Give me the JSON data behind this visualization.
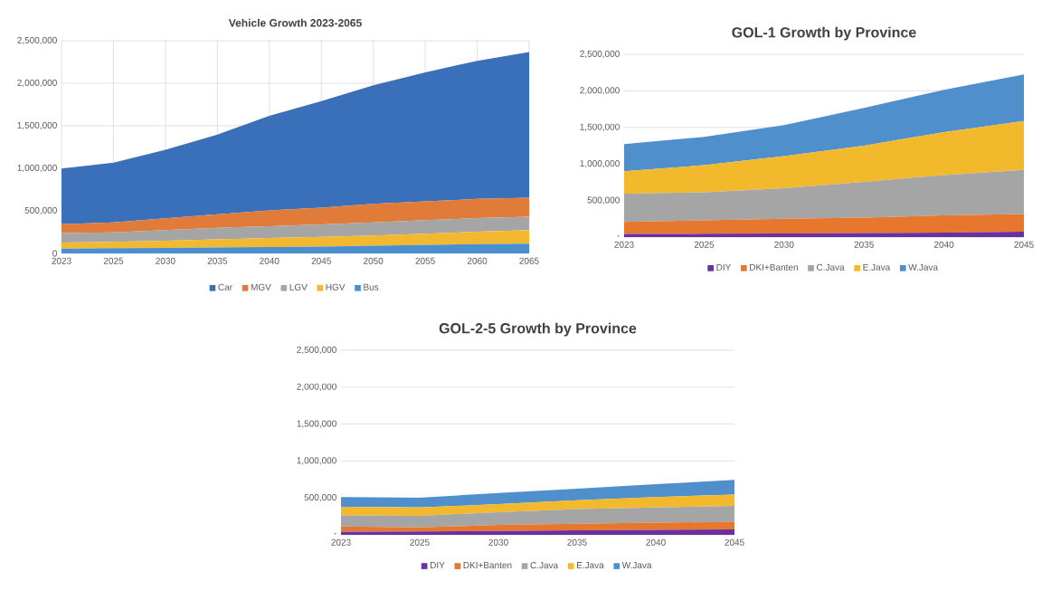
{
  "chart_data": [
    {
      "type": "area",
      "title": "Vehicle Growth 2023-2065",
      "stacked": true,
      "grid": true,
      "legend": "bottom",
      "categories": [
        "2023",
        "2025",
        "2030",
        "2035",
        "2040",
        "2045",
        "2050",
        "2055",
        "2060",
        "2065"
      ],
      "ylim": [
        0,
        2500000
      ],
      "yticks": [
        {
          "value": 0,
          "label": "0"
        },
        {
          "value": 500000,
          "label": "500,000"
        },
        {
          "value": 1000000,
          "label": "1,000,000"
        },
        {
          "value": 1500000,
          "label": "1,500,000"
        },
        {
          "value": 2000000,
          "label": "2,000,000"
        },
        {
          "value": 2500000,
          "label": "2,500,000"
        }
      ],
      "series": [
        {
          "name": "Bus",
          "color": "#4a90d0",
          "values": [
            55000,
            60000,
            65000,
            70000,
            75000,
            80000,
            90000,
            100000,
            110000,
            115000
          ]
        },
        {
          "name": "HGV",
          "color": "#f2b930",
          "values": [
            73000,
            75000,
            85000,
            95000,
            105000,
            115000,
            120000,
            130000,
            145000,
            158000
          ]
        },
        {
          "name": "LGV",
          "color": "#a5a5a5",
          "values": [
            112000,
            113000,
            125000,
            135000,
            140000,
            145000,
            155000,
            160000,
            160000,
            157000
          ]
        },
        {
          "name": "MGV",
          "color": "#e07b39",
          "values": [
            103000,
            116000,
            138000,
            159000,
            184000,
            197000,
            218000,
            222000,
            225000,
            223000
          ]
        },
        {
          "name": "Car",
          "color": "#3a6fba",
          "values": [
            653000,
            702000,
            806000,
            938000,
            1112000,
            1252000,
            1392000,
            1516000,
            1624000,
            1715000
          ]
        }
      ]
    },
    {
      "type": "area",
      "title": "GOL-1 Growth by Province",
      "stacked": true,
      "grid": "y",
      "legend": "bottom",
      "categories": [
        "2023",
        "2025",
        "2030",
        "2035",
        "2040",
        "2045"
      ],
      "ylim": [
        0,
        2500000
      ],
      "yticks": [
        {
          "value": 0,
          "label": "-"
        },
        {
          "value": 500000,
          "label": "500,000"
        },
        {
          "value": 1000000,
          "label": "1,000,000"
        },
        {
          "value": 1500000,
          "label": "1,500,000"
        },
        {
          "value": 2000000,
          "label": "2,000,000"
        },
        {
          "value": 2500000,
          "label": "2,500,000"
        }
      ],
      "series": [
        {
          "name": "DIY",
          "color": "#6a2fa0",
          "values": [
            43000,
            45000,
            50000,
            55000,
            62000,
            73000
          ]
        },
        {
          "name": "DKI+Banten",
          "color": "#e8772e",
          "values": [
            164000,
            183000,
            200000,
            212000,
            235000,
            242000
          ]
        },
        {
          "name": "C.Java",
          "color": "#a5a5a5",
          "values": [
            388000,
            384000,
            418000,
            487000,
            552000,
            603000
          ]
        },
        {
          "name": "E.Java",
          "color": "#f2b92c",
          "values": [
            306000,
            371000,
            440000,
            496000,
            586000,
            668000
          ]
        },
        {
          "name": "W.Java",
          "color": "#4f8fcc",
          "values": [
            371000,
            388000,
            422000,
            517000,
            578000,
            638000
          ]
        }
      ]
    },
    {
      "type": "area",
      "title": "GOL-2-5 Growth by Province",
      "stacked": true,
      "grid": "y",
      "legend": "bottom",
      "categories": [
        "2023",
        "2025",
        "2030",
        "2035",
        "2040",
        "2045"
      ],
      "ylim": [
        0,
        2500000
      ],
      "yticks": [
        {
          "value": 0,
          "label": "-"
        },
        {
          "value": 500000,
          "label": "500,000"
        },
        {
          "value": 1000000,
          "label": "1,000,000"
        },
        {
          "value": 1500000,
          "label": "1,500,000"
        },
        {
          "value": 2000000,
          "label": "2,000,000"
        },
        {
          "value": 2500000,
          "label": "2,500,000"
        }
      ],
      "series": [
        {
          "name": "DIY",
          "color": "#6a2fa0",
          "values": [
            44000,
            45000,
            52000,
            60000,
            67000,
            74000
          ]
        },
        {
          "name": "DKI+Banten",
          "color": "#e8772e",
          "values": [
            70000,
            55000,
            83000,
            89000,
            99000,
            101000
          ]
        },
        {
          "name": "C.Java",
          "color": "#a5a5a5",
          "values": [
            148000,
            158000,
            171000,
            201000,
            205000,
            218000
          ]
        },
        {
          "name": "E.Java",
          "color": "#f2b92c",
          "values": [
            118000,
            113000,
            109000,
            118000,
            140000,
            153000
          ]
        },
        {
          "name": "W.Java",
          "color": "#4f8fcc",
          "values": [
            131000,
            132000,
            153000,
            157000,
            175000,
            197000
          ]
        }
      ]
    }
  ]
}
